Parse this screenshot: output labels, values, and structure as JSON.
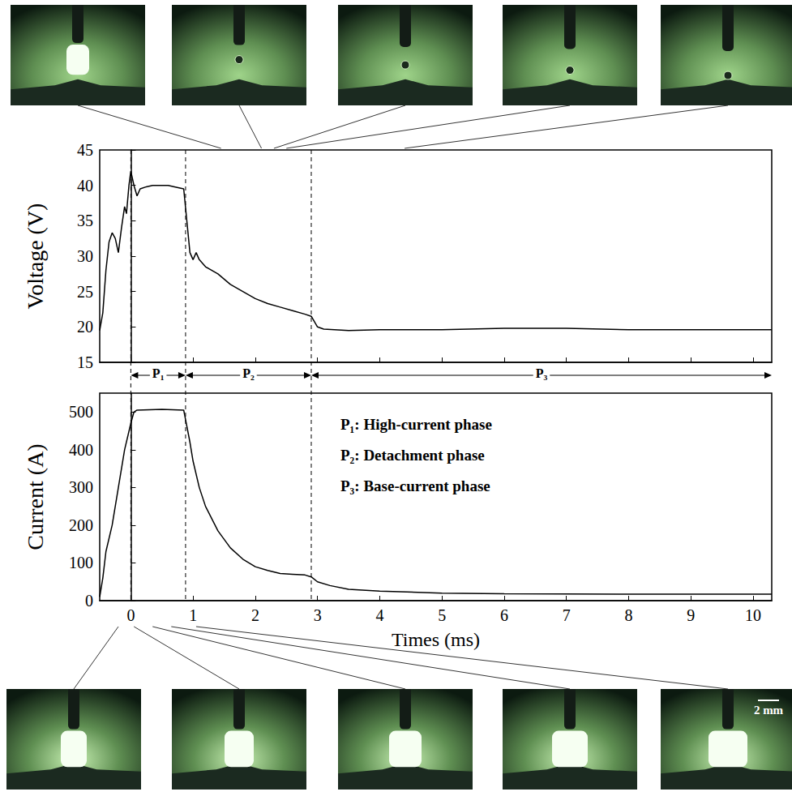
{
  "chart_data": [
    {
      "type": "line",
      "y_label": "Voltage (V)",
      "x": [
        -0.5,
        -0.45,
        -0.4,
        -0.35,
        -0.3,
        -0.25,
        -0.2,
        -0.15,
        -0.1,
        -0.07,
        -0.03,
        0.0,
        0.05,
        0.1,
        0.15,
        0.25,
        0.35,
        0.5,
        0.6,
        0.7,
        0.85,
        0.9,
        0.95,
        1.0,
        1.05,
        1.1,
        1.2,
        1.4,
        1.6,
        1.8,
        2.0,
        2.2,
        2.4,
        2.6,
        2.8,
        2.9,
        3.0,
        3.1,
        3.5,
        4,
        5,
        6,
        7,
        8,
        9,
        10,
        10.3
      ],
      "values": [
        19.5,
        22,
        28,
        32,
        33.3,
        32.5,
        30.5,
        34,
        37,
        36,
        40,
        42,
        40,
        38.5,
        39.5,
        39.8,
        40,
        40,
        40,
        39.8,
        39.5,
        35,
        30.5,
        29.5,
        30.5,
        29.5,
        28.5,
        27.5,
        26,
        25,
        24,
        23.3,
        22.8,
        22.3,
        21.8,
        21.5,
        20,
        19.7,
        19.5,
        19.6,
        19.6,
        19.8,
        19.8,
        19.6,
        19.6,
        19.6,
        19.6
      ],
      "color": "#000000",
      "xlim": [
        -0.5,
        10.3
      ],
      "xticks": [
        0,
        1,
        2,
        3,
        4,
        5,
        6,
        7,
        8,
        9,
        10
      ],
      "ylim": [
        15,
        45
      ],
      "yticks": [
        15,
        20,
        25,
        30,
        35,
        40,
        45
      ],
      "grid": false,
      "tick_labels": "y",
      "phases": [
        {
          "label": "P₁",
          "start": 0,
          "end": 0.88
        },
        {
          "label": "P₂",
          "start": 0.88,
          "end": 2.9
        },
        {
          "label": "P₃",
          "start": 2.9,
          "end": 10.3
        }
      ]
    },
    {
      "type": "line",
      "x_label": "Times (ms)",
      "y_label": "Current (A)",
      "x": [
        -0.5,
        -0.45,
        -0.4,
        -0.3,
        -0.2,
        -0.1,
        0,
        0.05,
        0.1,
        0.5,
        0.85,
        0.95,
        1.0,
        1.1,
        1.2,
        1.4,
        1.6,
        1.8,
        2.0,
        2.2,
        2.4,
        2.6,
        2.8,
        2.9,
        3.0,
        3.2,
        3.5,
        4,
        5,
        6,
        8,
        10,
        10.3
      ],
      "values": [
        10,
        60,
        130,
        200,
        300,
        400,
        470,
        500,
        505,
        507,
        505,
        420,
        370,
        300,
        250,
        185,
        140,
        110,
        90,
        80,
        72,
        70,
        68,
        63,
        50,
        40,
        30,
        25,
        20,
        18,
        17,
        17,
        17
      ],
      "color": "#000000",
      "xlim": [
        -0.5,
        10.3
      ],
      "xticks": [
        0,
        1,
        2,
        3,
        4,
        5,
        6,
        7,
        8,
        9,
        10
      ],
      "ylim": [
        0,
        550
      ],
      "yticks": [
        0,
        100,
        200,
        300,
        400,
        500
      ],
      "grid": false,
      "annotations": [
        "P₁: High-current phase",
        "P₂: Detachment phase",
        "P₃: Base-current phase"
      ]
    }
  ],
  "frames": {
    "top_times": [
      1.45,
      2.1,
      2.3,
      2.5,
      4.4
    ],
    "bottom_times": [
      -0.2,
      0.05,
      0.35,
      0.65,
      1.05
    ],
    "scale_bar": "2 mm"
  }
}
